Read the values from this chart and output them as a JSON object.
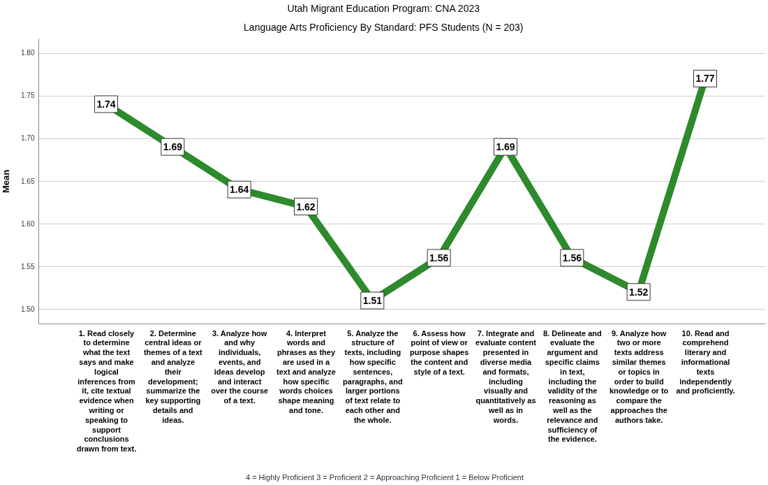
{
  "chart_data": {
    "type": "line",
    "title": "Utah Migrant Education Program: CNA 2023",
    "subtitle": "Language Arts Proficiency By Standard: PFS Students (N = 203)",
    "ylabel": "Mean",
    "categories": [
      "1. Read closely to determine what the text says and make logical inferences from it,  cite textual evidence when writing or speaking to support conclusions drawn from text.",
      "2. Determine central ideas or themes of a text and analyze their development; summarize the key supporting details and ideas.",
      "3. Analyze how and why individuals, events, and ideas develop and interact over the course of a text.",
      "4. Interpret words and phrases as they are used in a text and analyze how specific words choices shape meaning and tone.",
      "5. Analyze the structure of texts, including how specific sentences, paragraphs, and larger portions of text relate to each other and the whole.",
      "6. Assess how point of view or purpose shapes the content and style of a text.",
      "7. Integrate and evaluate content presented in diverse media and formats, including visually and quantitatively as well as in words.",
      "8. Delineate and evaluate the argument and specific claims in text, including the validity of the reasoning as well as the relevance and sufficiency of the evidence.",
      "9. Analyze how two or more texts address similar themes or topics in order to build knowledge or to compare the approaches the authors take.",
      "10. Read and comprehend literary and informational texts independently and proficiently."
    ],
    "series": [
      {
        "color": "#2d8a2d",
        "values": [
          1.74,
          1.69,
          1.64,
          1.62,
          1.51,
          1.56,
          1.69,
          1.56,
          1.52,
          1.77
        ]
      }
    ],
    "ylim": [
      1.483,
      1.817
    ],
    "yticks": [
      {
        "value": 1.5,
        "label": "1.50"
      },
      {
        "value": 1.55,
        "label": "1.55"
      },
      {
        "value": 1.6,
        "label": "1.60"
      },
      {
        "value": 1.65,
        "label": "1.65"
      },
      {
        "value": 1.7,
        "label": "1.70"
      },
      {
        "value": 1.75,
        "label": "1.75"
      },
      {
        "value": 1.8,
        "label": "1.80"
      }
    ],
    "grid": "y",
    "legend": false,
    "marker": "square",
    "line_style": "solid",
    "data_labels": true,
    "annotations": [
      "4 = Highly Proficient   3 = Proficient   2 = Approaching Proficient   1 = Below Proficient"
    ]
  }
}
